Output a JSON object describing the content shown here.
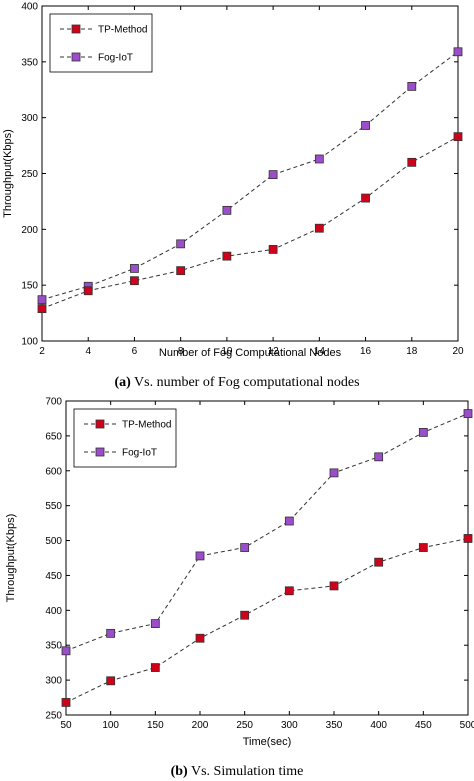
{
  "chart_data": [
    {
      "id": "a",
      "type": "line",
      "caption_label": "(a)",
      "caption_text": " Vs. number of Fog computational nodes",
      "xlabel": "Number of Fog Computational Nodes",
      "ylabel": "Throughput(Kbps)",
      "x": [
        2,
        4,
        6,
        8,
        10,
        12,
        14,
        16,
        18,
        20
      ],
      "xlim": [
        2,
        20
      ],
      "ylim": [
        100,
        400
      ],
      "xticks": [
        2,
        4,
        6,
        8,
        10,
        12,
        14,
        16,
        18,
        20
      ],
      "yticks": [
        100,
        150,
        200,
        250,
        300,
        350,
        400
      ],
      "legend_position": "top-left",
      "series": [
        {
          "name": "TP-Method",
          "color": "#d0021b",
          "marker": "square",
          "values": [
            129,
            145,
            154,
            163,
            176,
            182,
            201,
            228,
            260,
            283
          ]
        },
        {
          "name": "Fog-IoT",
          "color": "#9b4dca",
          "marker": "square",
          "values": [
            137,
            149,
            165,
            187,
            217,
            249,
            263,
            293,
            328,
            359
          ]
        }
      ]
    },
    {
      "id": "b",
      "type": "line",
      "caption_label": "(b)",
      "caption_text": " Vs. Simulation time",
      "xlabel": "Time(sec)",
      "ylabel": "Throughput(Kbps)",
      "x": [
        50,
        100,
        150,
        200,
        250,
        300,
        350,
        400,
        450,
        500
      ],
      "xlim": [
        50,
        500
      ],
      "ylim": [
        250,
        700
      ],
      "xticks": [
        50,
        100,
        150,
        200,
        250,
        300,
        350,
        400,
        450,
        500
      ],
      "yticks": [
        250,
        300,
        350,
        400,
        450,
        500,
        550,
        600,
        650,
        700
      ],
      "legend_position": "top-left",
      "series": [
        {
          "name": "TP-Method",
          "color": "#d0021b",
          "marker": "square",
          "values": [
            268,
            299,
            318,
            360,
            393,
            428,
            435,
            469,
            490,
            503
          ]
        },
        {
          "name": "Fog-IoT",
          "color": "#9b4dca",
          "marker": "square",
          "values": [
            342,
            367,
            381,
            478,
            490,
            528,
            597,
            620,
            655,
            682
          ]
        }
      ]
    }
  ]
}
